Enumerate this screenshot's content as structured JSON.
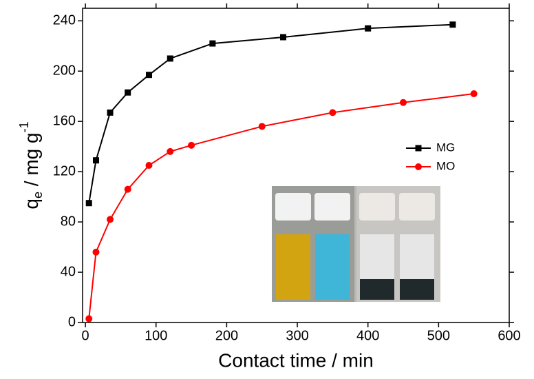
{
  "chart_data": {
    "type": "line",
    "xlabel": "Contact time / min",
    "ylabel": {
      "main": "q",
      "sub": "e",
      "mid": " / mg g",
      "sup": "-1"
    },
    "xlim": [
      -4,
      600
    ],
    "xticks": [
      0,
      100,
      200,
      300,
      400,
      500,
      600
    ],
    "ylim": [
      0,
      250
    ],
    "yticks": [
      0,
      40,
      80,
      120,
      160,
      200,
      240
    ],
    "legend": "right",
    "series": [
      {
        "name": "MG",
        "color": "#000000",
        "marker": "square",
        "x": [
          5,
          15,
          35,
          60,
          90,
          120,
          180,
          280,
          400,
          520
        ],
        "values": [
          95,
          129,
          167,
          183,
          197,
          210,
          222,
          227,
          234,
          237
        ]
      },
      {
        "name": "MO",
        "color": "#ff0000",
        "marker": "circle",
        "x": [
          5,
          15,
          35,
          60,
          90,
          120,
          150,
          250,
          350,
          450,
          550
        ],
        "values": [
          3,
          56,
          82,
          106,
          125,
          136,
          141,
          156,
          167,
          175,
          182
        ]
      }
    ]
  }
}
